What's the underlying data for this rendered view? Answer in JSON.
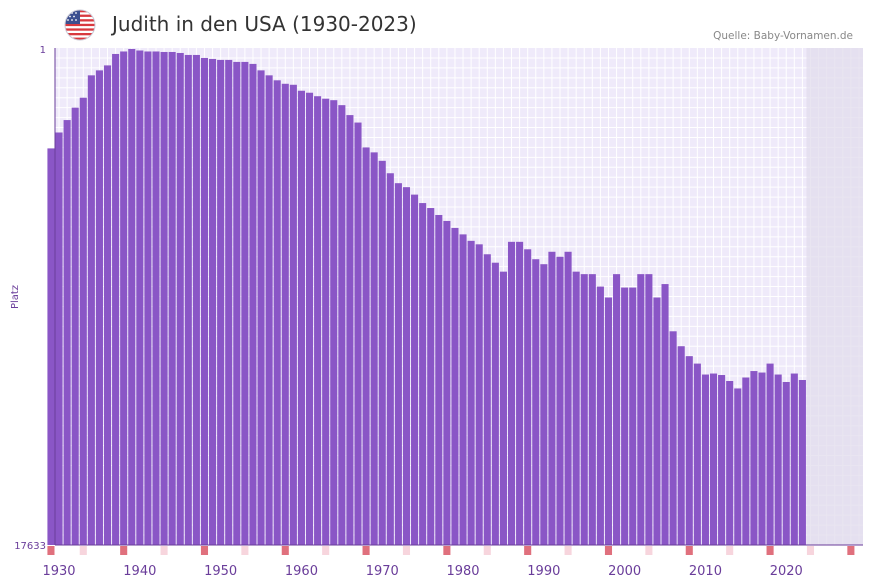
{
  "header": {
    "title": "Judith in den USA (1930-2023)",
    "source": "Quelle: Baby-Vornamen.de",
    "flag_icon": "us-flag-icon"
  },
  "colors": {
    "bar": "#8a56c6",
    "background": "#efeafa",
    "grid": "#ffffff",
    "future_band": "#e2dcec",
    "accent_red": "#e0707d",
    "accent_pink": "#f7d5dd",
    "axis_text": "#6a3d9a"
  },
  "chart_data": {
    "type": "bar",
    "title": "Judith in den USA (1930-2023)",
    "ylabel": "Platz",
    "xlabel": "",
    "y_axis": {
      "top_label": "1",
      "bottom_label": "17633",
      "inverted": true
    },
    "x_ticks": [
      "1930",
      "1940",
      "1950",
      "1960",
      "1970",
      "1980",
      "1990",
      "2000",
      "2010",
      "2020"
    ],
    "x_range": [
      1929.5,
      2029.5
    ],
    "future_from_year": 2023,
    "note": "values are relative bar heights (1 = rank 1 at top, 0 = rank 17633 at bottom)",
    "series": [
      {
        "name": "Judith",
        "years": [
          1929,
          1930,
          1931,
          1932,
          1933,
          1934,
          1935,
          1936,
          1937,
          1938,
          1939,
          1940,
          1941,
          1942,
          1943,
          1944,
          1945,
          1946,
          1947,
          1948,
          1949,
          1950,
          1951,
          1952,
          1953,
          1954,
          1955,
          1956,
          1957,
          1958,
          1959,
          1960,
          1961,
          1962,
          1963,
          1964,
          1965,
          1966,
          1967,
          1968,
          1969,
          1970,
          1971,
          1972,
          1973,
          1974,
          1975,
          1976,
          1977,
          1978,
          1979,
          1980,
          1981,
          1982,
          1983,
          1984,
          1985,
          1986,
          1987,
          1988,
          1989,
          1990,
          1991,
          1992,
          1993,
          1994,
          1995,
          1996,
          1997,
          1998,
          1999,
          2000,
          2001,
          2002,
          2003,
          2004,
          2005,
          2006,
          2007,
          2008,
          2009,
          2010,
          2011,
          2012,
          2013,
          2014,
          2015,
          2016,
          2017,
          2018,
          2019,
          2020,
          2021,
          2022
        ],
        "values": [
          0.798,
          0.83,
          0.855,
          0.88,
          0.9,
          0.945,
          0.955,
          0.965,
          0.988,
          0.993,
          0.998,
          0.995,
          0.993,
          0.993,
          0.992,
          0.992,
          0.99,
          0.986,
          0.986,
          0.98,
          0.978,
          0.976,
          0.976,
          0.972,
          0.972,
          0.968,
          0.955,
          0.945,
          0.935,
          0.928,
          0.926,
          0.914,
          0.91,
          0.903,
          0.898,
          0.895,
          0.885,
          0.865,
          0.85,
          0.8,
          0.79,
          0.773,
          0.748,
          0.728,
          0.72,
          0.705,
          0.688,
          0.678,
          0.664,
          0.652,
          0.638,
          0.625,
          0.612,
          0.605,
          0.585,
          0.568,
          0.55,
          0.61,
          0.61,
          0.595,
          0.575,
          0.565,
          0.59,
          0.58,
          0.59,
          0.55,
          0.545,
          0.545,
          0.52,
          0.498,
          0.545,
          0.518,
          0.518,
          0.545,
          0.545,
          0.498,
          0.525,
          0.43,
          0.4,
          0.38,
          0.365,
          0.343,
          0.345,
          0.342,
          0.33,
          0.315,
          0.337,
          0.35,
          0.347,
          0.365,
          0.343,
          0.328,
          0.345,
          0.332
        ]
      }
    ],
    "year_markers": {
      "strong": [
        1929,
        1938,
        1948,
        1958,
        1968,
        1978,
        1988,
        1998,
        2008,
        2018,
        2028
      ],
      "light": [
        1933,
        1943,
        1953,
        1963,
        1973,
        1983,
        1993,
        2003,
        2013,
        2023
      ]
    }
  }
}
